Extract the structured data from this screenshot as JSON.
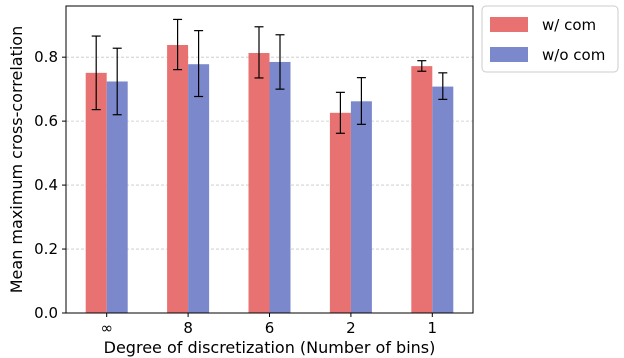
{
  "chart_data": {
    "type": "bar",
    "categories": [
      "∞",
      "8",
      "6",
      "2",
      "1"
    ],
    "xlabel": "Degree of discretization (Number of bins)",
    "ylabel": "Mean maximum cross-correlation",
    "ylim": [
      0.0,
      0.96
    ],
    "yticks": [
      "0.0",
      "0.2",
      "0.4",
      "0.6",
      "0.8"
    ],
    "grid": "horizontal dashed",
    "legend_position": "outside-top-right",
    "series": [
      {
        "name": "w/ com",
        "color": "#e87271",
        "values": [
          0.751,
          0.838,
          0.813,
          0.626,
          0.772
        ],
        "error_low": [
          0.636,
          0.761,
          0.735,
          0.562,
          0.756
        ],
        "error_high": [
          0.866,
          0.918,
          0.895,
          0.69,
          0.789
        ]
      },
      {
        "name": "w/o com",
        "color": "#7b88cc",
        "values": [
          0.724,
          0.778,
          0.785,
          0.662,
          0.708
        ],
        "error_low": [
          0.62,
          0.677,
          0.7,
          0.59,
          0.668
        ],
        "error_high": [
          0.828,
          0.883,
          0.87,
          0.736,
          0.751
        ]
      }
    ]
  }
}
